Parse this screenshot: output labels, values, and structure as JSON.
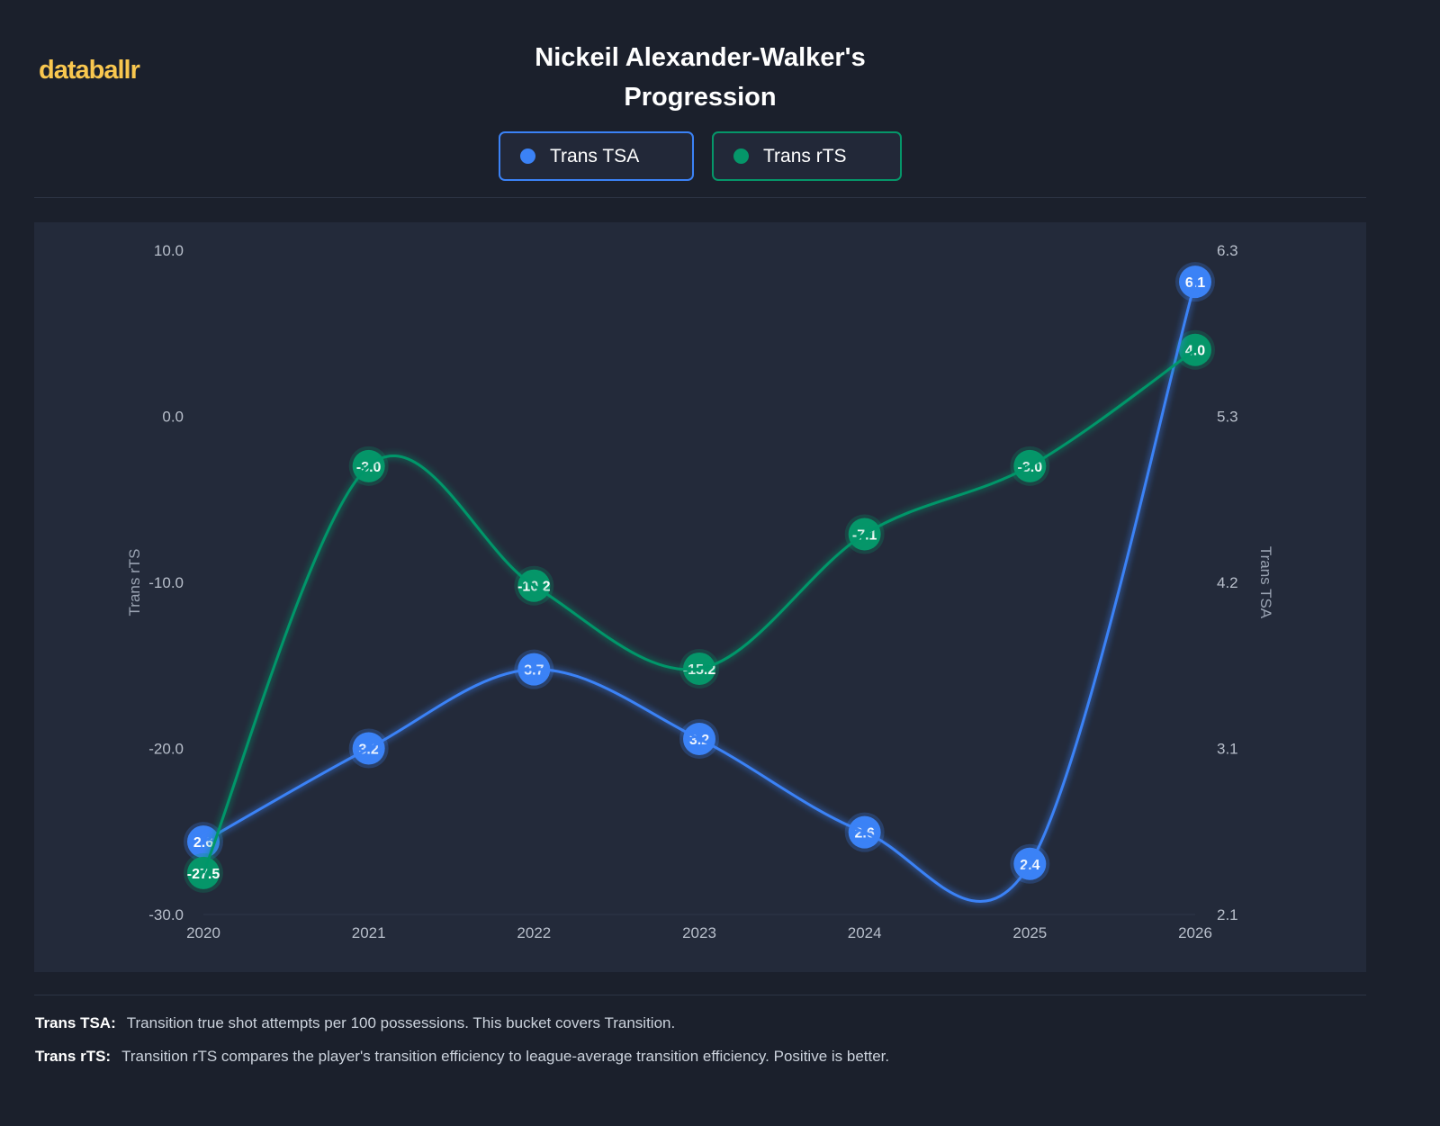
{
  "brand": "databallr",
  "title_line1": "Nickeil Alexander-Walker's",
  "title_line2": "Progression",
  "legend": [
    {
      "label": "Trans TSA",
      "color": "#3b82f6"
    },
    {
      "label": "Trans rTS",
      "color": "#059669"
    }
  ],
  "chart_data": {
    "type": "line",
    "title": "Nickeil Alexander-Walker's Progression",
    "x": [
      "2020",
      "2021",
      "2022",
      "2023",
      "2024",
      "2025",
      "2026"
    ],
    "y_left": {
      "label": "Trans rTS",
      "range": [
        -30,
        10
      ],
      "ticks": [
        "10.0",
        "0.0",
        "-10.0",
        "-20.0",
        "-30.0"
      ]
    },
    "y_right": {
      "label": "Trans TSA",
      "range": [
        2.1,
        6.3
      ],
      "ticks": [
        "6.3",
        "5.3",
        "4.2",
        "3.1",
        "2.1"
      ]
    },
    "series": [
      {
        "name": "Trans TSA",
        "axis": "right",
        "color": "#3b82f6",
        "values": [
          2.56,
          3.15,
          3.65,
          3.21,
          2.62,
          2.42,
          6.1
        ],
        "labels": [
          "2.6",
          "3.2",
          "3.7",
          "3.2",
          "2.6",
          "2.4",
          "6.1"
        ]
      },
      {
        "name": "Trans rTS",
        "axis": "left",
        "color": "#059669",
        "values": [
          -27.5,
          -3.0,
          -10.2,
          -15.2,
          -7.1,
          -3.0,
          4.0
        ],
        "labels": [
          "-27.5",
          "-3.0",
          "-10.2",
          "-15.2",
          "-7.1",
          "-3.0",
          "4.0"
        ]
      }
    ],
    "grid": false,
    "legend_position": "top-center"
  },
  "notes": [
    {
      "term": "Trans TSA:",
      "text": "Transition true shot attempts per 100 possessions. This bucket covers Transition."
    },
    {
      "term": "Trans rTS:",
      "text": "Transition rTS compares the player's transition efficiency to league-average transition efficiency. Positive is better."
    }
  ]
}
